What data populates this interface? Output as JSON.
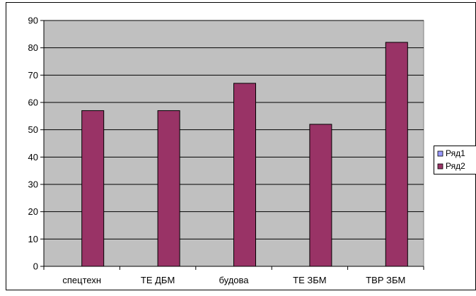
{
  "chart_data": {
    "type": "bar",
    "categories": [
      "спецтехн",
      "ТЕ ДБМ",
      "будова",
      "ТЕ ЗБМ",
      "ТВР ЗБМ"
    ],
    "series": [
      {
        "name": "Ряд1",
        "values": [
          0,
          0,
          0,
          0,
          0
        ],
        "color": "#9999FF"
      },
      {
        "name": "Ряд2",
        "values": [
          57,
          57,
          67,
          52,
          82
        ],
        "color": "#993366"
      }
    ],
    "ylim": [
      0,
      90
    ],
    "yticks": [
      0,
      10,
      20,
      30,
      40,
      50,
      60,
      70,
      80,
      90
    ],
    "grid": true,
    "legend_position": "right",
    "plot_background": "#C0C0C0"
  }
}
